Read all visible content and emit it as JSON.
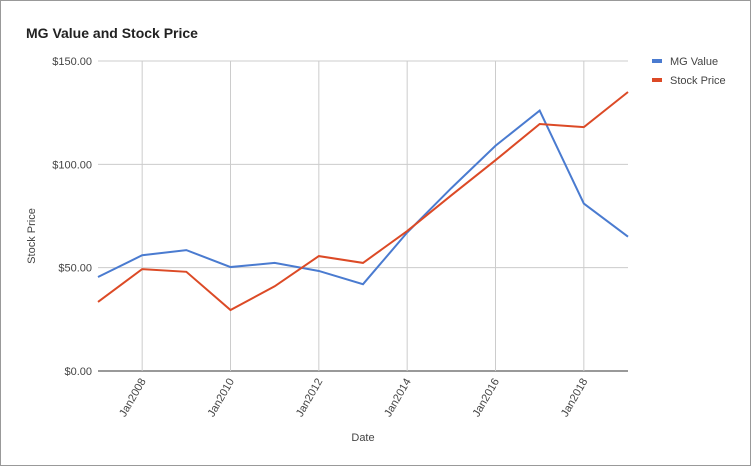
{
  "chart_data": {
    "type": "line",
    "title": "MG Value and Stock Price",
    "xlabel": "Date",
    "ylabel": "Stock Price",
    "x": [
      2007,
      2008,
      2009,
      2010,
      2011,
      2012,
      2013,
      2014,
      2015,
      2016,
      2017,
      2018,
      2019
    ],
    "series": [
      {
        "name": "MG Value",
        "color": "#4a7bd0",
        "values": [
          45.5,
          56,
          58.5,
          50.3,
          52.3,
          48.4,
          42,
          67,
          88.5,
          109,
          126,
          81,
          65
        ]
      },
      {
        "name": "Stock Price",
        "color": "#dc4a26",
        "values": [
          33.4,
          49.3,
          48,
          29.5,
          41,
          55.6,
          52.3,
          67.7,
          85,
          102,
          119.5,
          118,
          135
        ]
      }
    ],
    "xlim": [
      2007,
      2019
    ],
    "xticks": [
      {
        "value": 2008,
        "label": "Jan2008"
      },
      {
        "value": 2010,
        "label": "Jan2010"
      },
      {
        "value": 2012,
        "label": "Jan2012"
      },
      {
        "value": 2014,
        "label": "Jan2014"
      },
      {
        "value": 2016,
        "label": "Jan2016"
      },
      {
        "value": 2018,
        "label": "Jan2018"
      }
    ],
    "ylim": [
      0,
      150
    ],
    "yticks": [
      {
        "value": 0,
        "label": "$0.00"
      },
      {
        "value": 50,
        "label": "$50.00"
      },
      {
        "value": 100,
        "label": "$100.00"
      },
      {
        "value": 150,
        "label": "$150.00"
      }
    ],
    "grid": true,
    "legend": "right"
  }
}
